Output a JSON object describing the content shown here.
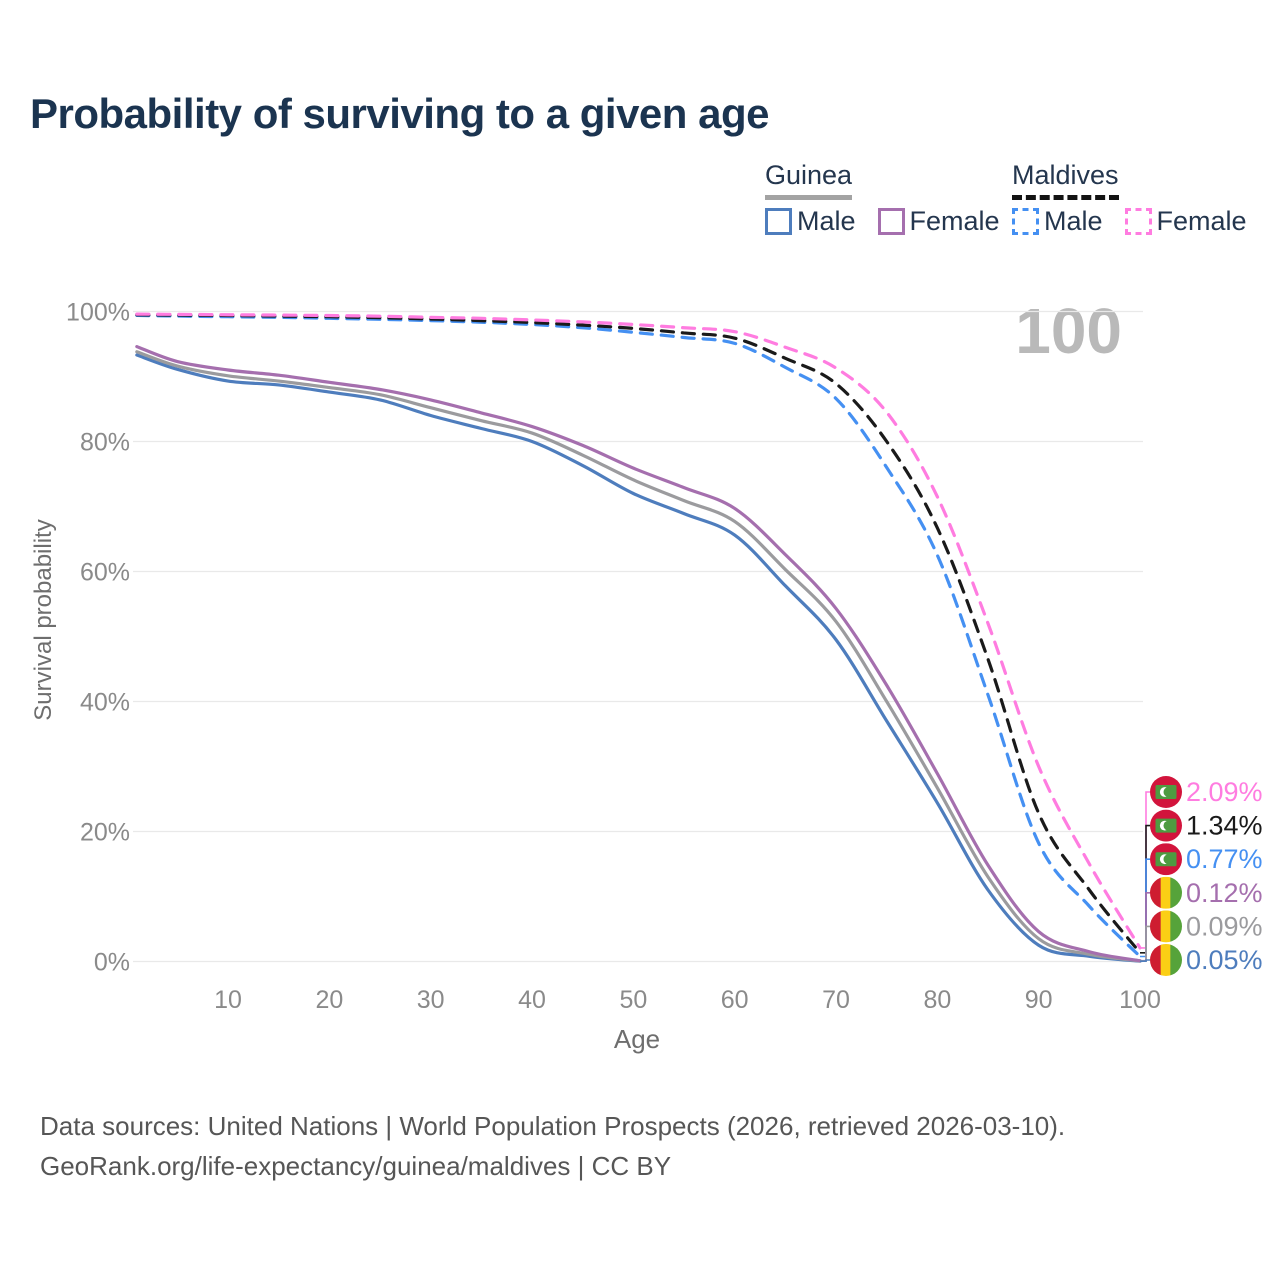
{
  "page": {
    "title": "Probability of surviving to a given age",
    "watermark": "100"
  },
  "legend": {
    "groups": [
      {
        "country": "Guinea",
        "underline": "solid",
        "underline_color": "#a3a3a3",
        "items": [
          {
            "label": "Male",
            "color": "#4e7dbd",
            "dash": false
          },
          {
            "label": "Female",
            "color": "#a56fae",
            "dash": false
          }
        ]
      },
      {
        "country": "Maldives",
        "underline": "dashed",
        "underline_color": "#131313",
        "items": [
          {
            "label": "Male",
            "color": "#4590f2",
            "dash": true
          },
          {
            "label": "Female",
            "color": "#ff7ce0",
            "dash": true
          }
        ]
      }
    ]
  },
  "chart_data": {
    "type": "line",
    "title": "Probability of surviving to a given age",
    "xlabel": "Age",
    "ylabel": "Survival probability",
    "xlim": [
      1,
      100
    ],
    "ylim": [
      0,
      100
    ],
    "grid": "horizontal",
    "legend_position": "top-right",
    "x_ticks": [
      {
        "v": 10,
        "label": "10"
      },
      {
        "v": 20,
        "label": "20"
      },
      {
        "v": 30,
        "label": "30"
      },
      {
        "v": 40,
        "label": "40"
      },
      {
        "v": 50,
        "label": "50"
      },
      {
        "v": 60,
        "label": "60"
      },
      {
        "v": 70,
        "label": "70"
      },
      {
        "v": 80,
        "label": "80"
      },
      {
        "v": 90,
        "label": "90"
      },
      {
        "v": 100,
        "label": "100"
      }
    ],
    "y_ticks": [
      {
        "v": 0,
        "label": "0%"
      },
      {
        "v": 20,
        "label": "20%"
      },
      {
        "v": 40,
        "label": "40%"
      },
      {
        "v": 60,
        "label": "60%"
      },
      {
        "v": 80,
        "label": "80%"
      },
      {
        "v": 100,
        "label": "100%"
      }
    ],
    "ages": [
      1,
      5,
      10,
      15,
      20,
      25,
      30,
      35,
      40,
      45,
      50,
      55,
      60,
      65,
      70,
      75,
      80,
      85,
      90,
      95,
      100
    ],
    "series": [
      {
        "id": "guinea-male",
        "country": "Guinea",
        "sex": "Male",
        "color": "#4e7dbd",
        "dash": false,
        "flag": "guinea",
        "end_label": "0.05%",
        "values": [
          93.3,
          91.1,
          89.3,
          88.7,
          87.6,
          86.4,
          84.0,
          82.0,
          80.0,
          76.3,
          72.0,
          68.9,
          65.6,
          57.8,
          49.5,
          37.0,
          24.4,
          11.0,
          2.5,
          0.8,
          0.05
        ]
      },
      {
        "id": "guinea-both",
        "country": "Guinea",
        "sex": "Both sexes",
        "color": "#9b9b9e",
        "dash": false,
        "flag": "guinea",
        "end_label": "0.09%",
        "values": [
          93.8,
          91.6,
          90.1,
          89.3,
          88.3,
          87.2,
          85.2,
          83.2,
          81.3,
          77.9,
          74.1,
          70.9,
          67.7,
          60.3,
          52.3,
          40.0,
          26.7,
          13.0,
          3.5,
          1.1,
          0.09
        ]
      },
      {
        "id": "guinea-female",
        "country": "Guinea",
        "sex": "Female",
        "color": "#a56fae",
        "dash": false,
        "flag": "guinea",
        "end_label": "0.12%",
        "values": [
          94.6,
          92.3,
          91.0,
          90.2,
          89.1,
          88.0,
          86.4,
          84.4,
          82.3,
          79.4,
          75.9,
          72.9,
          69.7,
          62.6,
          54.3,
          42.5,
          28.9,
          14.8,
          4.6,
          1.5,
          0.12
        ]
      },
      {
        "id": "maldives-male",
        "country": "Maldives",
        "sex": "Male",
        "color": "#4590f2",
        "dash": true,
        "flag": "maldives",
        "end_label": "0.77%",
        "values": [
          99.4,
          99.3,
          99.2,
          99.1,
          98.95,
          98.8,
          98.6,
          98.35,
          98.0,
          97.5,
          96.8,
          96.0,
          95.1,
          91.4,
          86.6,
          76.0,
          62.5,
          41.0,
          18.2,
          8.5,
          0.77
        ]
      },
      {
        "id": "maldives-both",
        "country": "Maldives",
        "sex": "Both sexes",
        "color": "#1a1a1a",
        "dash": true,
        "flag": "maldives",
        "end_label": "1.34%",
        "values": [
          99.5,
          99.45,
          99.38,
          99.3,
          99.2,
          99.05,
          98.85,
          98.6,
          98.3,
          97.9,
          97.4,
          96.7,
          95.9,
          92.8,
          88.9,
          80.0,
          66.7,
          46.5,
          22.8,
          11.0,
          1.34
        ]
      },
      {
        "id": "maldives-female",
        "country": "Maldives",
        "sex": "Female",
        "color": "#ff7ce0",
        "dash": true,
        "flag": "maldives",
        "end_label": "2.09%",
        "values": [
          99.6,
          99.56,
          99.5,
          99.45,
          99.38,
          99.28,
          99.1,
          98.95,
          98.7,
          98.4,
          98.0,
          97.5,
          96.9,
          94.5,
          91.3,
          84.5,
          71.5,
          52.0,
          30.0,
          15.0,
          2.09
        ]
      }
    ],
    "flag_colors": {
      "guinea": {
        "red": "#ce1d30",
        "yellow": "#fbcf15",
        "green": "#56a33a"
      },
      "maldives": {
        "red": "#d2143c",
        "green": "#4e9b41",
        "crescent": "#ffffff"
      }
    },
    "grid_color": "#e9e9e9",
    "tick_color": "#8a8a8a"
  },
  "footer": {
    "line1": "Data sources: United Nations | World Population Prospects (2026, retrieved 2026-03-10).",
    "line2": "GeoRank.org/life-expectancy/guinea/maldives | CC BY"
  }
}
